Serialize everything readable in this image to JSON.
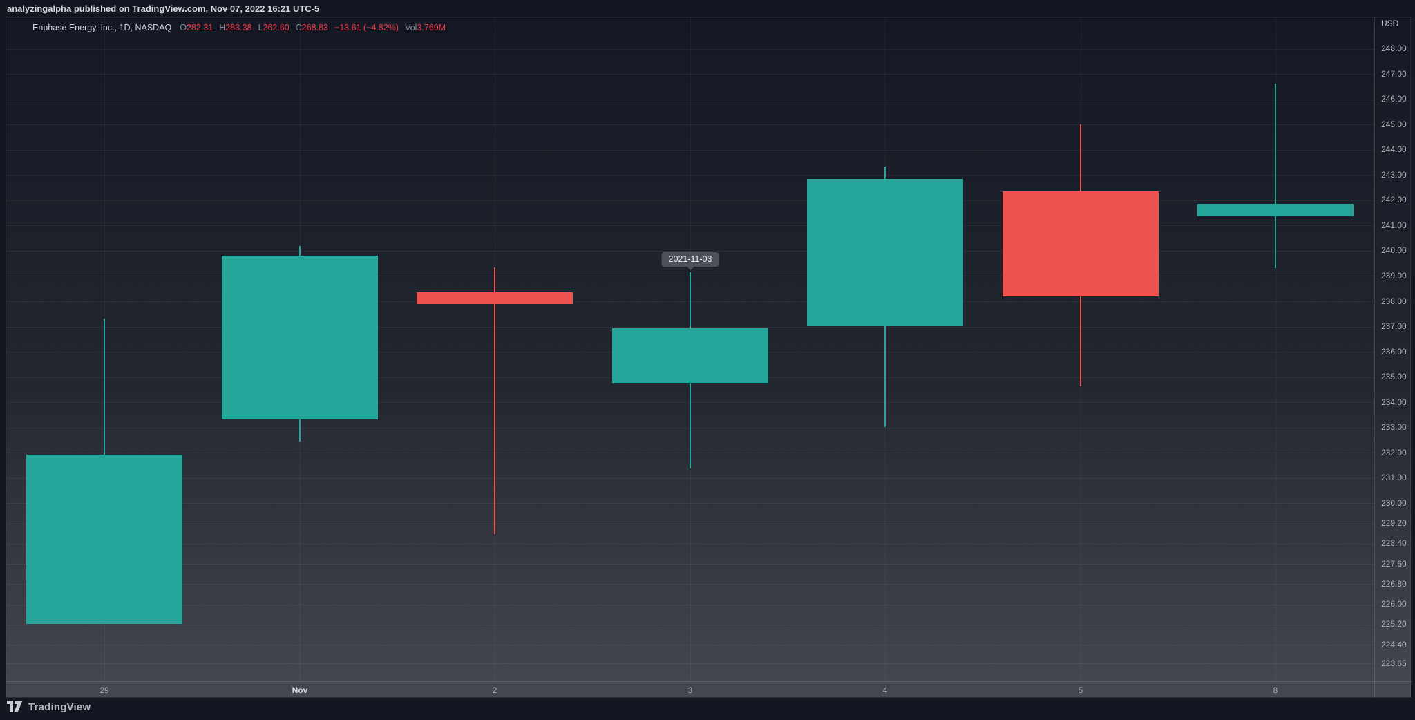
{
  "attribution": {
    "username": "analyzingalpha",
    "rest": " published on TradingView.com, Nov 07, 2022 16:21 UTC-5"
  },
  "legend": {
    "title": "Enphase Energy, Inc., 1D, NASDAQ",
    "ohlc": [
      {
        "label": "O",
        "value": "282.31"
      },
      {
        "label": "H",
        "value": "283.38"
      },
      {
        "label": "L",
        "value": "262.60"
      },
      {
        "label": "C",
        "value": "268.83"
      }
    ],
    "change": "−13.61 (−4.82%)",
    "volume_label": "Vol",
    "volume_value": "3.769M"
  },
  "tooltip": {
    "text": "2021-11-03"
  },
  "price_axis": {
    "currency": "USD",
    "ticks": [
      {
        "label": "248.00",
        "value": 248.0
      },
      {
        "label": "247.00",
        "value": 247.0
      },
      {
        "label": "246.00",
        "value": 246.0
      },
      {
        "label": "245.00",
        "value": 245.0
      },
      {
        "label": "244.00",
        "value": 244.0
      },
      {
        "label": "243.00",
        "value": 243.0
      },
      {
        "label": "242.00",
        "value": 242.0
      },
      {
        "label": "241.00",
        "value": 241.0
      },
      {
        "label": "240.00",
        "value": 240.0
      },
      {
        "label": "239.00",
        "value": 239.0
      },
      {
        "label": "238.00",
        "value": 238.0
      },
      {
        "label": "237.00",
        "value": 237.0
      },
      {
        "label": "236.00",
        "value": 236.0
      },
      {
        "label": "235.00",
        "value": 235.0
      },
      {
        "label": "234.00",
        "value": 234.0
      },
      {
        "label": "233.00",
        "value": 233.0
      },
      {
        "label": "232.00",
        "value": 232.0
      },
      {
        "label": "231.00",
        "value": 231.0
      },
      {
        "label": "230.00",
        "value": 230.0
      },
      {
        "label": "229.20",
        "value": 229.2
      },
      {
        "label": "228.40",
        "value": 228.4
      },
      {
        "label": "227.60",
        "value": 227.6
      },
      {
        "label": "226.80",
        "value": 226.8
      },
      {
        "label": "226.00",
        "value": 226.0
      },
      {
        "label": "225.20",
        "value": 225.2
      },
      {
        "label": "224.40",
        "value": 224.4
      },
      {
        "label": "223.65",
        "value": 223.65
      }
    ]
  },
  "time_axis": {
    "labels": [
      {
        "label": "29",
        "emphasis": false
      },
      {
        "label": "Nov",
        "emphasis": true
      },
      {
        "label": "2",
        "emphasis": false
      },
      {
        "label": "3",
        "emphasis": false
      },
      {
        "label": "4",
        "emphasis": false
      },
      {
        "label": "5",
        "emphasis": false
      },
      {
        "label": "8",
        "emphasis": false
      }
    ]
  },
  "footer": {
    "brand": "TradingView"
  },
  "colors": {
    "up": "#26A69A",
    "down": "#EF5350",
    "value_red": "#F23645",
    "background": "#131722"
  },
  "chart_data": {
    "type": "candlestick",
    "title": "Enphase Energy, Inc., 1D, NASDAQ",
    "currency": "USD",
    "x_tick_labels": [
      "29",
      "Nov",
      "2",
      "3",
      "4",
      "5",
      "8"
    ],
    "ylim": [
      223.2,
      248.1
    ],
    "grid": true,
    "tooltip_date": "2021-11-03",
    "tooltip_on_index": 3,
    "candles": [
      {
        "date": "2021-10-29",
        "open": 225.22,
        "high": 237.32,
        "low": 225.22,
        "close": 231.93,
        "direction": "up"
      },
      {
        "date": "2021-11-01",
        "open": 233.32,
        "high": 240.19,
        "low": 232.44,
        "close": 239.81,
        "direction": "up"
      },
      {
        "date": "2021-11-02",
        "open": 238.36,
        "high": 239.34,
        "low": 228.79,
        "close": 237.89,
        "direction": "down"
      },
      {
        "date": "2021-11-03",
        "open": 234.74,
        "high": 239.15,
        "low": 231.37,
        "close": 236.93,
        "direction": "up"
      },
      {
        "date": "2021-11-04",
        "open": 237.02,
        "high": 243.34,
        "low": 233.02,
        "close": 242.85,
        "direction": "up"
      },
      {
        "date": "2021-11-05",
        "open": 242.36,
        "high": 245.01,
        "low": 234.63,
        "close": 238.19,
        "direction": "down"
      },
      {
        "date": "2021-11-08",
        "open": 241.37,
        "high": 246.63,
        "low": 239.32,
        "close": 241.86,
        "direction": "up"
      }
    ]
  }
}
